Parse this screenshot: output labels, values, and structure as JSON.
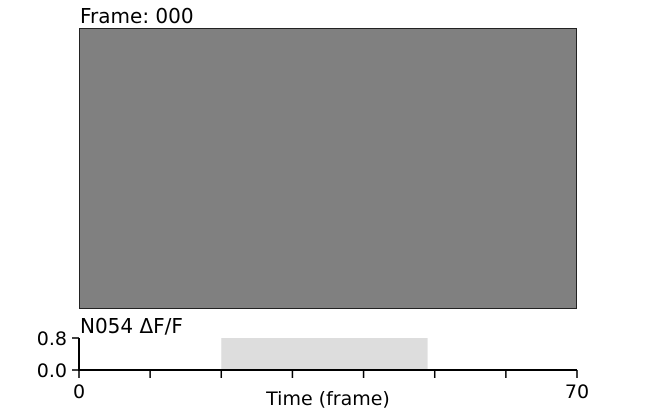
{
  "frame_panel": {
    "title": "Frame: 000",
    "image_color": "#808080"
  },
  "chart_data": {
    "type": "area",
    "title": "N054 ΔF/F",
    "xlabel": "Time (frame)",
    "ylabel": "",
    "xlim": [
      0,
      70
    ],
    "ylim": [
      0.0,
      0.8
    ],
    "x_ticks": [
      0,
      10,
      20,
      30,
      40,
      50,
      60,
      70
    ],
    "x_tick_labels": [
      "0",
      "",
      "",
      "",
      "",
      "",
      "",
      "70"
    ],
    "y_ticks": [
      0.0,
      0.8
    ],
    "y_tick_labels": [
      "0.0",
      "0.8"
    ],
    "highlight": {
      "x_start": 20,
      "x_end": 49,
      "y_top": 0.8,
      "color": "#dddddd"
    },
    "grid": false,
    "legend": "none"
  }
}
